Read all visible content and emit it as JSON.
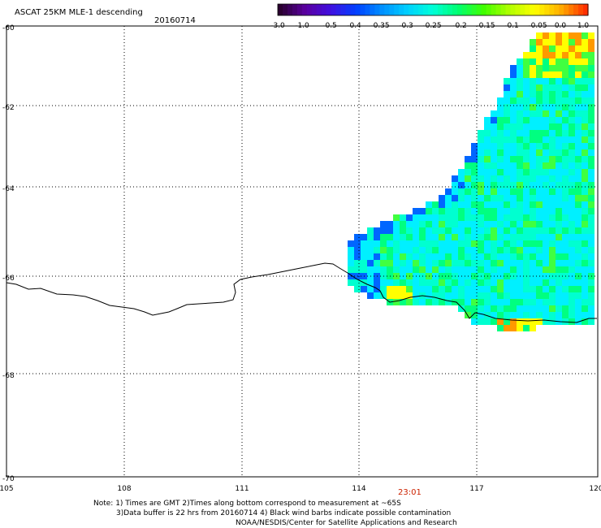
{
  "header": {
    "title": "ASCAT 25KM MLE-1 descending",
    "date": "20160714"
  },
  "colorbar": {
    "labels": [
      "-3.0",
      "-1.0",
      "-0.5",
      "-0.4",
      "-0.35",
      "-0.3",
      "-0.25",
      "-0.2",
      "-0.15",
      "-0.1",
      "-0.05",
      "0.0",
      "1.0"
    ],
    "colors": [
      "#2a0030",
      "#5a00a0",
      "#4010e0",
      "#0040ff",
      "#0090ff",
      "#00d0ff",
      "#00ffd8",
      "#00ff70",
      "#40ff00",
      "#b0ff00",
      "#ffff00",
      "#ffb000",
      "#ff3000"
    ]
  },
  "axes": {
    "lat_labels": [
      "-60",
      "-62",
      "-64",
      "-66",
      "-68",
      "-70"
    ],
    "lon_labels": [
      "105",
      "108",
      "111",
      "114",
      "117",
      "120"
    ]
  },
  "map": {
    "time_label": "23:01",
    "data_colors": {
      "cyan": "#00f0ff",
      "aqua": "#00ffd0",
      "green": "#00ff80",
      "lightgreen": "#40ff40",
      "yellow": "#ffff00",
      "orange": "#ff9900",
      "blue": "#0066ff"
    }
  },
  "footer": {
    "line1": "Note: 1) Times are GMT 2)Times along bottom correspond to measurement at ~65S",
    "line2": "3)Data buffer is 22 hrs from 20160714 4) Black wind barbs indicate possible contamination",
    "line3": "NOAA/NESDIS/Center for Satellite Applications and Research"
  }
}
